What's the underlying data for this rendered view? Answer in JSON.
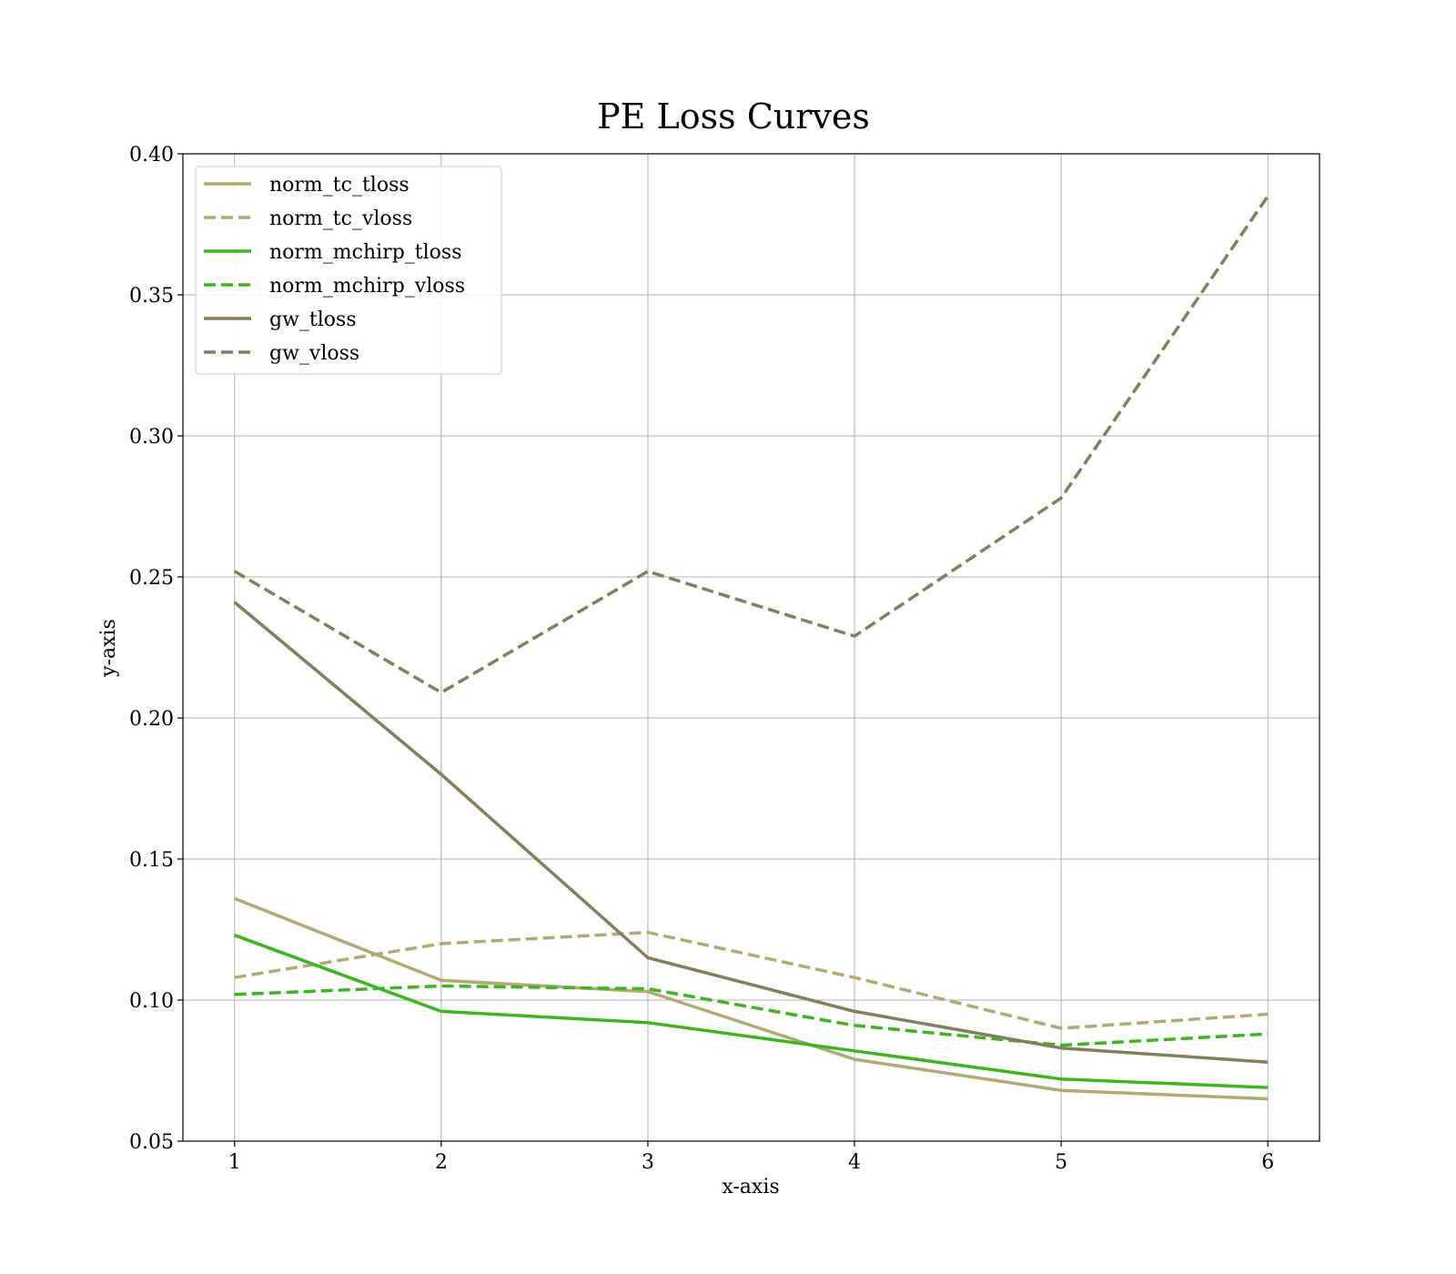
{
  "chart_data": {
    "type": "line",
    "title": "PE Loss Curves",
    "xlabel": "x-axis",
    "ylabel": "y-axis",
    "x": [
      1,
      2,
      3,
      4,
      5,
      6
    ],
    "xticks": [
      "1",
      "2",
      "3",
      "4",
      "5",
      "6"
    ],
    "yticks": [
      "0.05",
      "0.10",
      "0.15",
      "0.20",
      "0.25",
      "0.30",
      "0.35",
      "0.40"
    ],
    "ylim": [
      0.05,
      0.4
    ],
    "xlim": [
      0.75,
      6.25
    ],
    "grid": true,
    "legend_position": "top-left",
    "series": [
      {
        "name": "norm_tc_tloss",
        "color": "#b2aa74",
        "dash": "solid",
        "values": [
          0.136,
          0.107,
          0.103,
          0.079,
          0.068,
          0.065
        ]
      },
      {
        "name": "norm_tc_vloss",
        "color": "#b2aa74",
        "dash": "dashed",
        "values": [
          0.108,
          0.12,
          0.124,
          0.108,
          0.09,
          0.095
        ]
      },
      {
        "name": "norm_mchirp_tloss",
        "color": "#3cb521",
        "dash": "solid",
        "values": [
          0.123,
          0.096,
          0.092,
          0.082,
          0.072,
          0.069
        ]
      },
      {
        "name": "norm_mchirp_vloss",
        "color": "#3cb521",
        "dash": "dashed",
        "values": [
          0.102,
          0.105,
          0.104,
          0.091,
          0.084,
          0.088
        ]
      },
      {
        "name": "gw_tloss",
        "color": "#827f5c",
        "dash": "solid",
        "values": [
          0.241,
          0.18,
          0.115,
          0.096,
          0.083,
          0.078
        ]
      },
      {
        "name": "gw_vloss",
        "color": "#827f5c",
        "dash": "dashed",
        "values": [
          0.252,
          0.209,
          0.252,
          0.229,
          0.278,
          0.385
        ]
      }
    ]
  }
}
